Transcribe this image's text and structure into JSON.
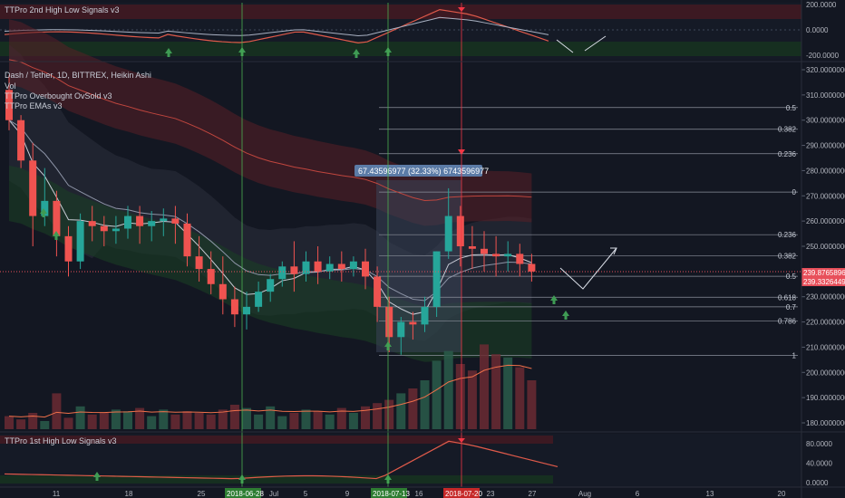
{
  "chart_data": [
    {
      "type": "line",
      "panel": "top-indicator",
      "title": "TTPro 2nd High Low Signals v3",
      "yticks": [
        "200.0000",
        "0.0000",
        "-200.0000"
      ],
      "ylim": [
        -220,
        220
      ]
    },
    {
      "type": "candlestick",
      "panel": "main",
      "title": "Dash / Tether, 1D, BITTREX, Heikin Ashi",
      "indicators": [
        "Vol",
        "TTPro Overbought OvSold v3",
        "TTPro EMAs v3"
      ],
      "yticks": [
        "320.00000000",
        "310.00000000",
        "300.00000000",
        "290.00000000",
        "280.00000000",
        "270.00000000",
        "260.00000000",
        "250.00000000",
        "240.00000000",
        "230.00000000",
        "220.00000000",
        "210.00000000",
        "200.00000000",
        "190.00000000",
        "180.00000000"
      ],
      "ylim": [
        177,
        323
      ],
      "price_labels": [
        "239.87658968",
        "239.33264491"
      ],
      "measure_label": "67.43596977 (32.33%) 6743596977",
      "fib_labels": [
        "0.5",
        "0.382",
        "0.236",
        "0",
        "0.236",
        "0.382",
        "0.5",
        "0.618",
        "0.7",
        "0.786",
        "1"
      ],
      "fib_levels": [
        305,
        296.4,
        286.7,
        271.5,
        254.6,
        246.3,
        238.1,
        229.8,
        226,
        220.4,
        206.8
      ],
      "candles": [
        {
          "o": 312,
          "h": 318,
          "c": 300,
          "l": 296
        },
        {
          "o": 300,
          "h": 302,
          "c": 284,
          "l": 281
        },
        {
          "o": 284,
          "h": 291,
          "c": 262,
          "l": 250
        },
        {
          "o": 262,
          "h": 281,
          "c": 268,
          "l": 258
        },
        {
          "o": 268,
          "h": 272,
          "c": 254,
          "l": 246
        },
        {
          "o": 254,
          "h": 258,
          "c": 244,
          "l": 238
        },
        {
          "o": 244,
          "h": 263,
          "c": 260,
          "l": 241
        },
        {
          "o": 260,
          "h": 266,
          "c": 258,
          "l": 252
        },
        {
          "o": 258,
          "h": 262,
          "c": 256,
          "l": 250
        },
        {
          "o": 256,
          "h": 262,
          "c": 257,
          "l": 251
        },
        {
          "o": 257,
          "h": 266,
          "c": 262,
          "l": 253
        },
        {
          "o": 262,
          "h": 266,
          "c": 258,
          "l": 251
        },
        {
          "o": 258,
          "h": 264,
          "c": 260,
          "l": 252
        },
        {
          "o": 260,
          "h": 265,
          "c": 261,
          "l": 254
        },
        {
          "o": 261,
          "h": 266,
          "c": 259,
          "l": 251
        },
        {
          "o": 259,
          "h": 263,
          "c": 246,
          "l": 242
        },
        {
          "o": 246,
          "h": 254,
          "c": 241,
          "l": 236
        },
        {
          "o": 241,
          "h": 248,
          "c": 235,
          "l": 231
        },
        {
          "o": 235,
          "h": 246,
          "c": 229,
          "l": 223
        },
        {
          "o": 229,
          "h": 234,
          "c": 223,
          "l": 218
        },
        {
          "o": 223,
          "h": 232,
          "c": 226,
          "l": 217
        },
        {
          "o": 226,
          "h": 236,
          "c": 232,
          "l": 224
        },
        {
          "o": 232,
          "h": 239,
          "c": 237,
          "l": 228
        },
        {
          "o": 237,
          "h": 244,
          "c": 242,
          "l": 234
        },
        {
          "o": 242,
          "h": 252,
          "c": 239,
          "l": 232
        },
        {
          "o": 239,
          "h": 248,
          "c": 244,
          "l": 236
        },
        {
          "o": 244,
          "h": 250,
          "c": 240,
          "l": 235
        },
        {
          "o": 240,
          "h": 246,
          "c": 243,
          "l": 237
        },
        {
          "o": 243,
          "h": 248,
          "c": 241,
          "l": 236
        },
        {
          "o": 241,
          "h": 246,
          "c": 244,
          "l": 238
        },
        {
          "o": 244,
          "h": 249,
          "c": 238,
          "l": 233
        },
        {
          "o": 238,
          "h": 242,
          "c": 226,
          "l": 220
        },
        {
          "o": 226,
          "h": 230,
          "c": 214,
          "l": 208
        },
        {
          "o": 214,
          "h": 222,
          "c": 220,
          "l": 207
        },
        {
          "o": 220,
          "h": 224,
          "c": 219,
          "l": 213
        },
        {
          "o": 219,
          "h": 230,
          "c": 226,
          "l": 216
        },
        {
          "o": 226,
          "h": 248,
          "c": 248,
          "l": 222
        },
        {
          "o": 248,
          "h": 273,
          "c": 262,
          "l": 245
        },
        {
          "o": 262,
          "h": 266,
          "c": 250,
          "l": 242
        },
        {
          "o": 250,
          "h": 258,
          "c": 249,
          "l": 241
        },
        {
          "o": 249,
          "h": 256,
          "c": 247,
          "l": 240
        },
        {
          "o": 247,
          "h": 254,
          "c": 246,
          "l": 238
        },
        {
          "o": 246,
          "h": 252,
          "c": 247,
          "l": 240
        },
        {
          "o": 247,
          "h": 251,
          "c": 243,
          "l": 238
        },
        {
          "o": 243,
          "h": 247,
          "c": 240,
          "l": 236
        }
      ],
      "volumes": [
        8,
        6,
        10,
        5,
        22,
        7,
        14,
        9,
        10,
        12,
        11,
        13,
        8,
        12,
        9,
        11,
        10,
        9,
        12,
        15,
        13,
        9,
        14,
        8,
        10,
        12,
        11,
        9,
        13,
        10,
        14,
        16,
        18,
        22,
        25,
        30,
        42,
        48,
        40,
        36,
        52,
        46,
        44,
        38,
        30
      ]
    },
    {
      "type": "line",
      "panel": "bottom-indicator",
      "title": "TTPro 1st High Low Signals v3",
      "yticks": [
        "80.0000",
        "40.0000",
        "0.0000"
      ],
      "ylim": [
        -5,
        95
      ]
    }
  ],
  "xaxis": {
    "ticks": [
      "11",
      "18",
      "25",
      "Jul",
      "5",
      "9",
      "16",
      "23",
      "27",
      "Aug",
      "6",
      "13",
      "20"
    ],
    "highlighted": [
      "2018-06-28",
      "2018-07-13",
      "2018-07-20"
    ]
  },
  "colors": {
    "background": "#131722",
    "up": "#26a69a",
    "down": "#ef5350",
    "cursor_green": "#4caf50",
    "cursor_red": "#f23645",
    "price_label": "#e8505b",
    "measure_bg": "#5b7ba6"
  }
}
